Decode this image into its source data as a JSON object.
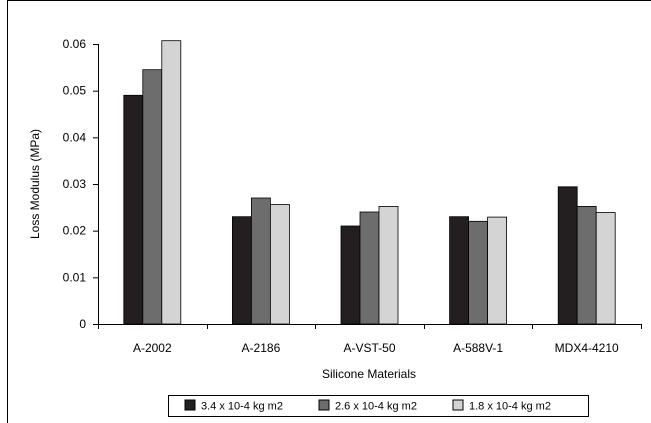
{
  "chart_data": {
    "type": "bar",
    "title": "",
    "xlabel": "Silicone Materials",
    "ylabel": "Loss Modulus (MPa)",
    "ylim": [
      0,
      0.06
    ],
    "yticks": [
      "0",
      "0.01",
      "0.02",
      "0.03",
      "0.04",
      "0.05",
      "0.06"
    ],
    "grid": false,
    "legend_position": "bottom",
    "categories": [
      "A-2002",
      "A-2186",
      "A-VST-50",
      "A-588V-1",
      "MDX4-4210"
    ],
    "series": [
      {
        "name": "3.4 x 10-4 kg m2",
        "color": "#231f20",
        "values": [
          0.049,
          0.023,
          0.021,
          0.023,
          0.0294
        ]
      },
      {
        "name": "2.6 x 10-4 kg m2",
        "color": "#6d6d6d",
        "values": [
          0.0545,
          0.027,
          0.024,
          0.022,
          0.0252
        ]
      },
      {
        "name": "1.8 x 10-4 kg m2",
        "color": "#d4d4d4",
        "values": [
          0.0607,
          0.0256,
          0.0252,
          0.0229,
          0.0239
        ]
      }
    ]
  }
}
